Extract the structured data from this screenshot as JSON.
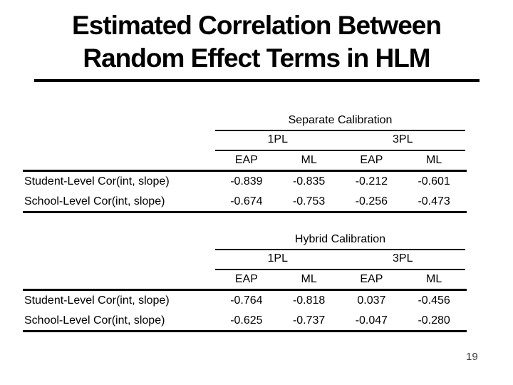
{
  "slide": {
    "title_line1": "Estimated Correlation Between",
    "title_line2": "Random Effect Terms in HLM",
    "page_number": "19",
    "text_color": "#000000",
    "background_color": "#ffffff"
  },
  "tables": [
    {
      "group_header": "Separate Calibration",
      "model_headers": [
        "1PL",
        "3PL"
      ],
      "col_headers": [
        "EAP",
        "ML",
        "EAP",
        "ML"
      ],
      "rows": [
        {
          "label": "Student-Level Cor(int, slope)",
          "values": [
            "-0.839",
            "-0.835",
            "-0.212",
            "-0.601"
          ]
        },
        {
          "label": "School-Level Cor(int, slope)",
          "values": [
            "-0.674",
            "-0.753",
            "-0.256",
            "-0.473"
          ]
        }
      ]
    },
    {
      "group_header": "Hybrid Calibration",
      "model_headers": [
        "1PL",
        "3PL"
      ],
      "col_headers": [
        "EAP",
        "ML",
        "EAP",
        "ML"
      ],
      "rows": [
        {
          "label": "Student-Level Cor(int, slope)",
          "values": [
            "-0.764",
            "-0.818",
            "0.037",
            "-0.456"
          ]
        },
        {
          "label": "School-Level Cor(int, slope)",
          "values": [
            "-0.625",
            "-0.737",
            "-0.047",
            "-0.280"
          ]
        }
      ]
    }
  ]
}
